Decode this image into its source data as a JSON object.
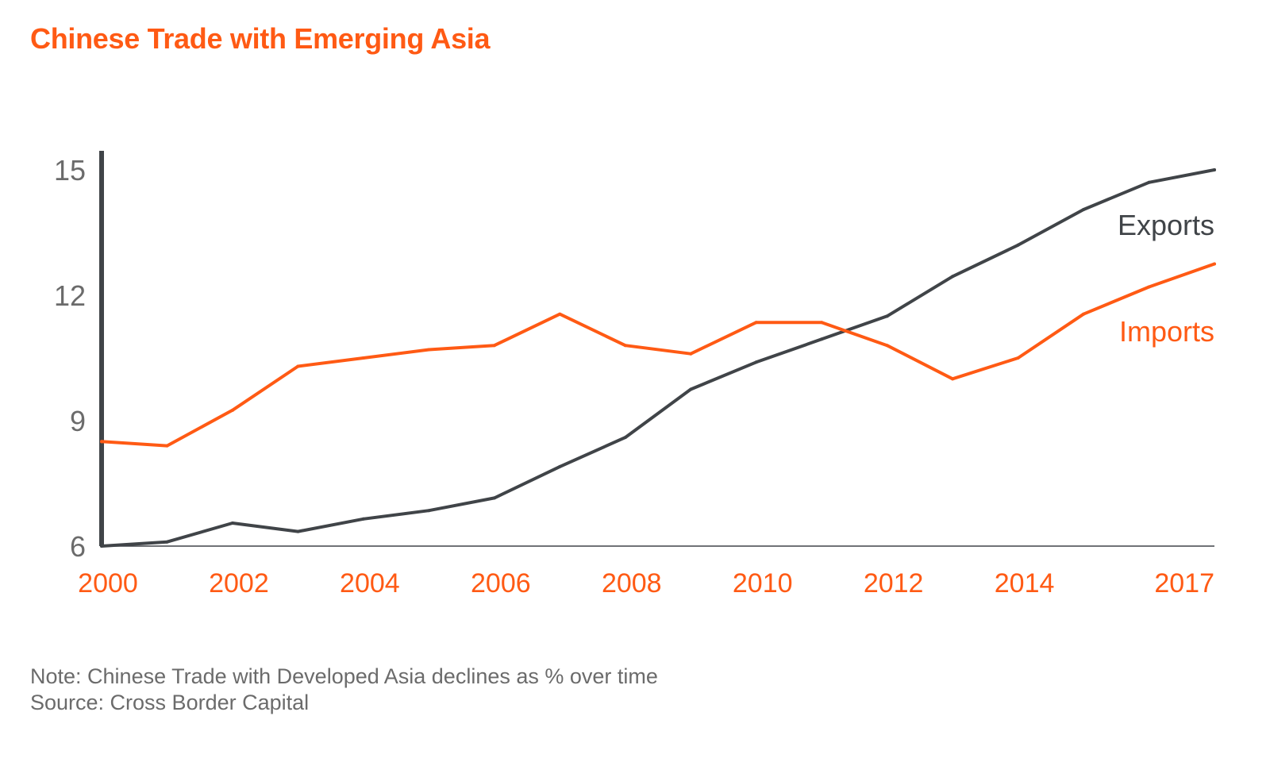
{
  "title": "Chinese Trade with Emerging Asia",
  "note": "Note: Chinese Trade with Developed Asia declines as % over time",
  "source": "Source: Cross Border Capital",
  "colors": {
    "exports": "#404448",
    "imports": "#ff5a14",
    "axis": "#404448",
    "ytick_text": "#6b6b6b",
    "xtick_text": "#ff5a14"
  },
  "chart_data": {
    "type": "line",
    "x": [
      2000,
      2001,
      2002,
      2003,
      2004,
      2005,
      2006,
      2007,
      2008,
      2009,
      2010,
      2011,
      2012,
      2013,
      2014,
      2015,
      2016,
      2017
    ],
    "x_tick_labels": [
      "2000",
      "2002",
      "2004",
      "2006",
      "2008",
      "2010",
      "2012",
      "2014",
      "2017"
    ],
    "y_ticks": [
      6,
      9,
      12,
      15
    ],
    "ylim": [
      6,
      15
    ],
    "xlim": [
      2000,
      2017
    ],
    "grid": false,
    "series": [
      {
        "name": "Exports",
        "color": "#404448",
        "values": [
          6.0,
          6.1,
          6.55,
          6.35,
          6.65,
          6.85,
          7.15,
          7.9,
          8.6,
          9.75,
          10.4,
          10.95,
          11.5,
          12.45,
          13.2,
          14.05,
          14.7,
          15.0
        ]
      },
      {
        "name": "Imports",
        "color": "#ff5a14",
        "values": [
          8.5,
          8.4,
          9.25,
          10.3,
          10.5,
          10.7,
          10.8,
          11.55,
          10.8,
          10.6,
          11.35,
          11.35,
          10.8,
          10.0,
          10.5,
          11.55,
          12.2,
          12.75
        ]
      }
    ],
    "title": "Chinese Trade with Emerging Asia",
    "xlabel": "",
    "ylabel": ""
  }
}
